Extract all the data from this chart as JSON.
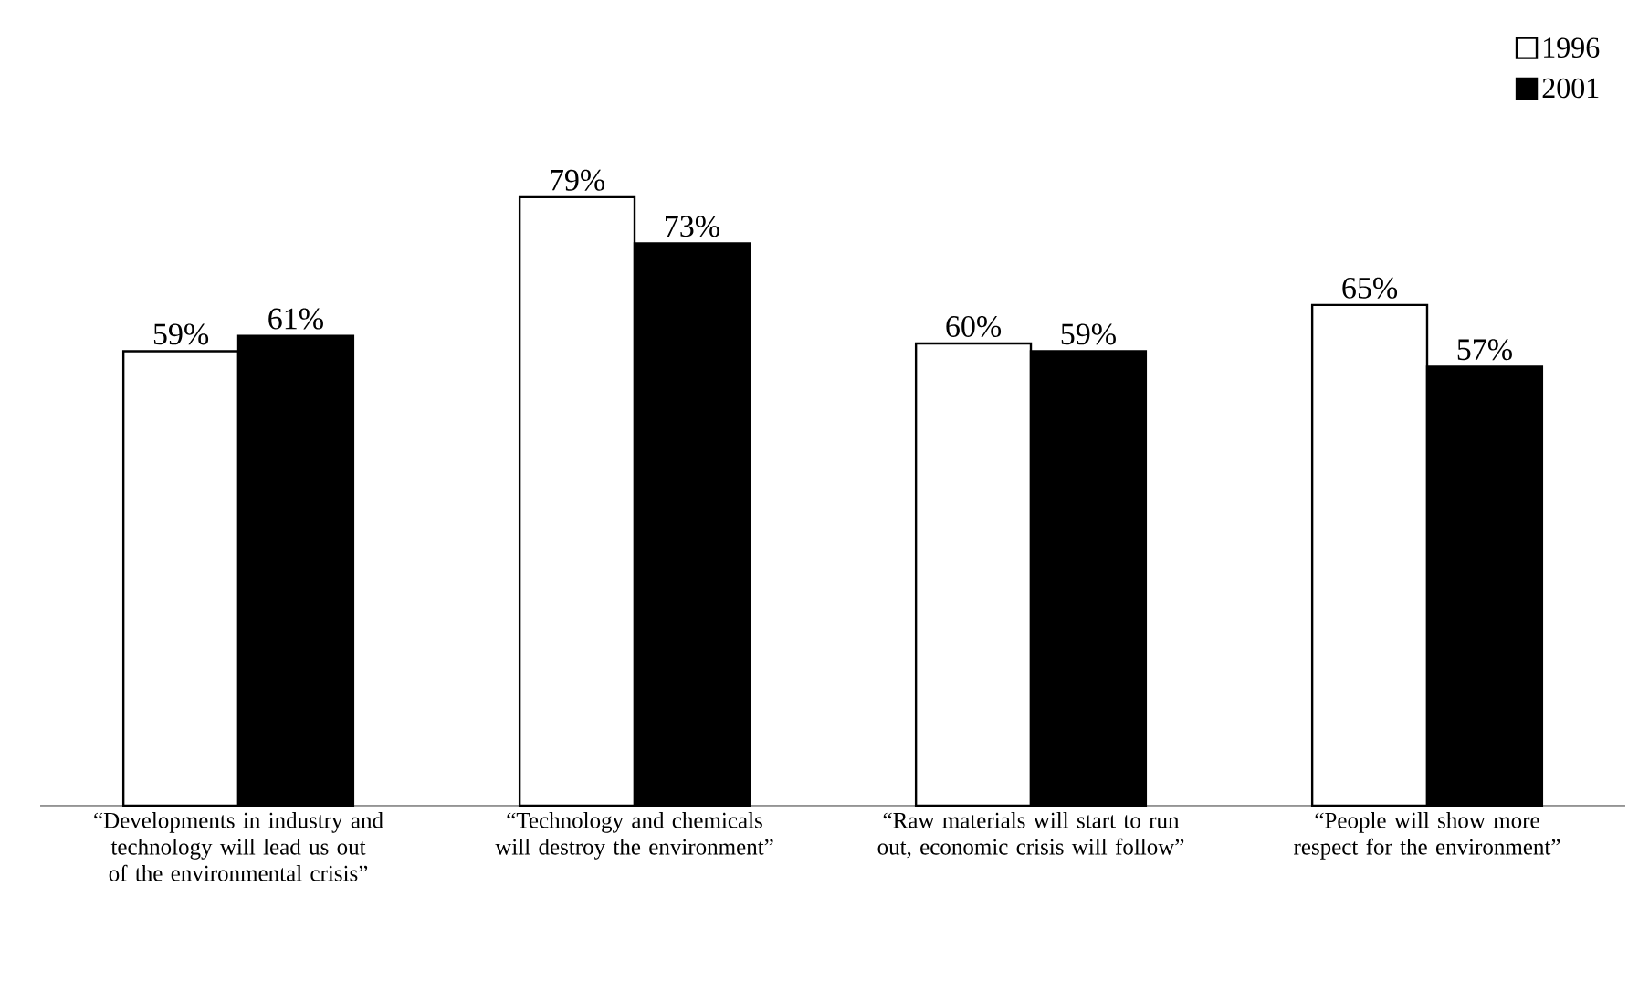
{
  "chart_data": {
    "type": "bar",
    "categories": [
      "“Developments in industry and technology will lead us out of the environmental crisis”",
      "“Technology and chemicals will destroy the environment”",
      "“Raw materials will start to run out, economic crisis will follow”",
      "“People will show more respect for the environment”"
    ],
    "series": [
      {
        "name": "1996",
        "color": "#ffffff",
        "values": [
          59,
          79,
          60,
          65
        ],
        "value_labels": [
          "59%",
          "79%",
          "60%",
          "65%"
        ]
      },
      {
        "name": "2001",
        "color": "#000000",
        "values": [
          61,
          73,
          59,
          57
        ],
        "value_labels": [
          "61%",
          "73%",
          "59%",
          "57%"
        ]
      }
    ],
    "legend": "top right"
  }
}
